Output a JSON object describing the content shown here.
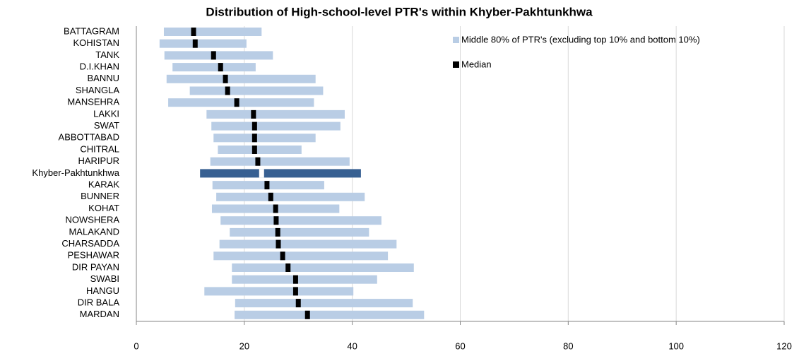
{
  "chart_data": {
    "type": "range-bar",
    "title": "Distribution of High-school-level PTR's within Khyber-Pakhtunkhwa",
    "categories": [
      "BATTAGRAM",
      "KOHISTAN",
      "TANK",
      "D.I.KHAN",
      "BANNU",
      "SHANGLA",
      "MANSEHRA",
      "LAKKI",
      "SWAT",
      "ABBOTTABAD",
      "CHITRAL",
      "HARIPUR",
      "Khyber-Pakhtunkhwa",
      "KARAK",
      "BUNNER",
      "KOHAT",
      "NOWSHERA",
      "MALAKAND",
      "CHARSADDA",
      "PESHAWAR",
      "DIR PAYAN",
      "SWABI",
      "HANGU",
      "DIR BALA",
      "MARDAN"
    ],
    "series": [
      {
        "name": "Middle 80% of PTR's (excluding top 10% and bottom 10%)",
        "color": "#b9cde5",
        "low": [
          5.1,
          4.3,
          5.2,
          6.7,
          5.6,
          9.9,
          5.9,
          13.0,
          13.9,
          14.3,
          15.1,
          13.7,
          11.8,
          14.1,
          14.8,
          14.0,
          15.6,
          17.3,
          15.4,
          14.3,
          17.7,
          17.7,
          12.6,
          18.3,
          18.2
        ],
        "high": [
          23.2,
          20.4,
          25.3,
          22.1,
          33.2,
          34.6,
          32.9,
          38.6,
          37.8,
          33.2,
          30.6,
          39.5,
          41.6,
          34.8,
          42.3,
          37.6,
          45.4,
          43.1,
          48.2,
          46.6,
          51.4,
          44.6,
          40.2,
          51.2,
          53.3
        ],
        "colors": [
          "#b9cde5",
          "#b9cde5",
          "#b9cde5",
          "#b9cde5",
          "#b9cde5",
          "#b9cde5",
          "#b9cde5",
          "#b9cde5",
          "#b9cde5",
          "#b9cde5",
          "#b9cde5",
          "#b9cde5",
          "#376092",
          "#b9cde5",
          "#b9cde5",
          "#b9cde5",
          "#b9cde5",
          "#b9cde5",
          "#b9cde5",
          "#b9cde5",
          "#b9cde5",
          "#b9cde5",
          "#b9cde5",
          "#b9cde5",
          "#b9cde5"
        ]
      },
      {
        "name": "Median",
        "color": "#000000",
        "values": [
          10.6,
          10.9,
          14.3,
          15.6,
          16.5,
          16.9,
          18.6,
          21.7,
          21.9,
          21.9,
          21.9,
          22.5,
          23.2,
          24.2,
          24.9,
          25.8,
          25.9,
          26.2,
          26.3,
          27.1,
          28.1,
          29.5,
          29.5,
          30.0,
          31.7
        ],
        "colors": [
          "#000000",
          "#000000",
          "#000000",
          "#000000",
          "#000000",
          "#000000",
          "#000000",
          "#000000",
          "#000000",
          "#000000",
          "#000000",
          "#000000",
          "#ffffff",
          "#000000",
          "#000000",
          "#000000",
          "#000000",
          "#000000",
          "#000000",
          "#000000",
          "#000000",
          "#000000",
          "#000000",
          "#000000",
          "#000000"
        ]
      }
    ],
    "xlim": [
      0,
      120
    ],
    "xticks": [
      0,
      20,
      40,
      60,
      80,
      100,
      120
    ],
    "grid": true,
    "legend": "top-right"
  }
}
